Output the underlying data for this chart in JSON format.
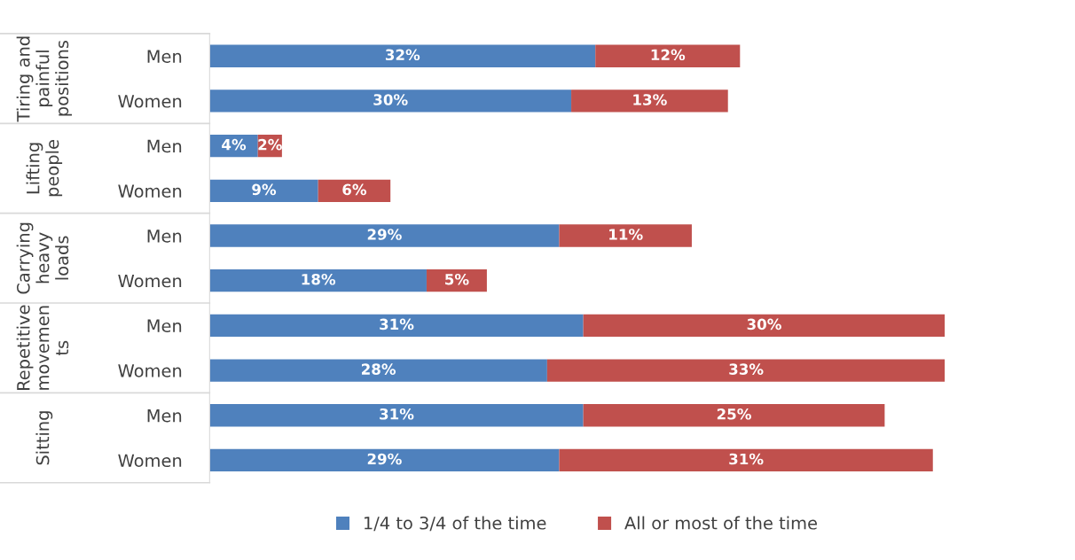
{
  "chart_data": {
    "type": "bar",
    "orientation": "horizontal",
    "stacked": true,
    "tick_labels": "y",
    "grid": false,
    "legend": "bottom",
    "categories": [
      "Men",
      "Women",
      "Men",
      "Women",
      "Men",
      "Women",
      "Men",
      "Women",
      "Men",
      "Women"
    ],
    "annotations": [
      "Tiring and\npainful\npositions",
      "Lifting\npeople",
      "Carrying\nheavy\nloads",
      "Repetitive\nmovemen\nts",
      "Sitting"
    ],
    "series": [
      {
        "name": "1/4 to 3/4 of the time",
        "color": "#4f81bd",
        "values": [
          32,
          30,
          4,
          9,
          29,
          18,
          31,
          28,
          31,
          29
        ],
        "value_labels": [
          "32%",
          "30%",
          "4%",
          "9%",
          "29%",
          "18%",
          "31%",
          "28%",
          "31%",
          "29%"
        ]
      },
      {
        "name": "All or most of the time",
        "color": "#c0504d",
        "values": [
          12,
          13,
          2,
          6,
          11,
          5,
          30,
          33,
          25,
          31
        ],
        "value_labels": [
          "12%",
          "13%",
          "2%",
          "6%",
          "11%",
          "5%",
          "30%",
          "33%",
          "25%",
          "31%"
        ]
      }
    ]
  }
}
